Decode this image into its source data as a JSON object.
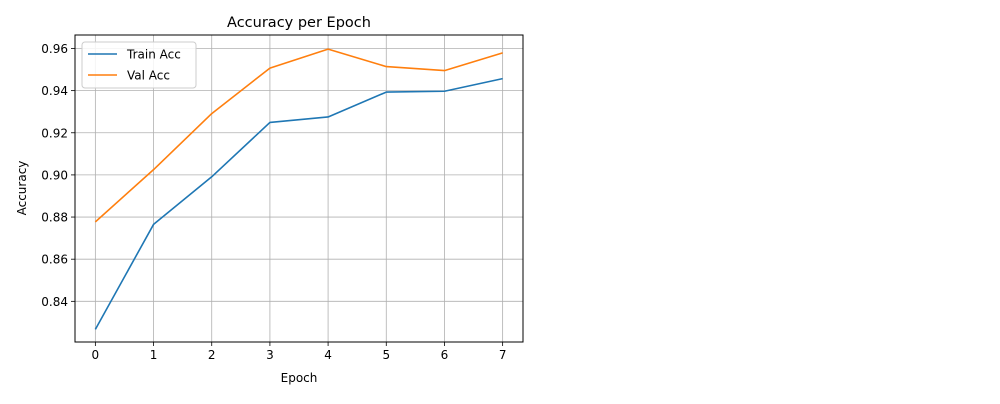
{
  "chart_data": {
    "type": "line",
    "title": "Accuracy per Epoch",
    "xlabel": "Epoch",
    "ylabel": "Accuracy",
    "x": [
      0,
      1,
      2,
      3,
      4,
      5,
      6,
      7
    ],
    "xticks": [
      "0",
      "1",
      "2",
      "3",
      "4",
      "5",
      "6",
      "7"
    ],
    "yticks": [
      "0.84",
      "0.86",
      "0.88",
      "0.90",
      "0.92",
      "0.94",
      "0.96"
    ],
    "ytick_values": [
      0.84,
      0.86,
      0.88,
      0.9,
      0.92,
      0.94,
      0.96
    ],
    "xlim": [
      -0.35,
      7.35
    ],
    "ylim": [
      0.8207,
      0.9664
    ],
    "grid": true,
    "legend_position": "upper-left",
    "series": [
      {
        "name": "Train Acc",
        "color": "#1f77b4",
        "values": [
          0.8267,
          0.8765,
          0.8991,
          0.9249,
          0.9275,
          0.9393,
          0.9397,
          0.9457
        ]
      },
      {
        "name": "Val Acc",
        "color": "#ff7f0e",
        "values": [
          0.8777,
          0.9025,
          0.9291,
          0.9507,
          0.9597,
          0.9514,
          0.9495,
          0.9579
        ]
      }
    ]
  }
}
